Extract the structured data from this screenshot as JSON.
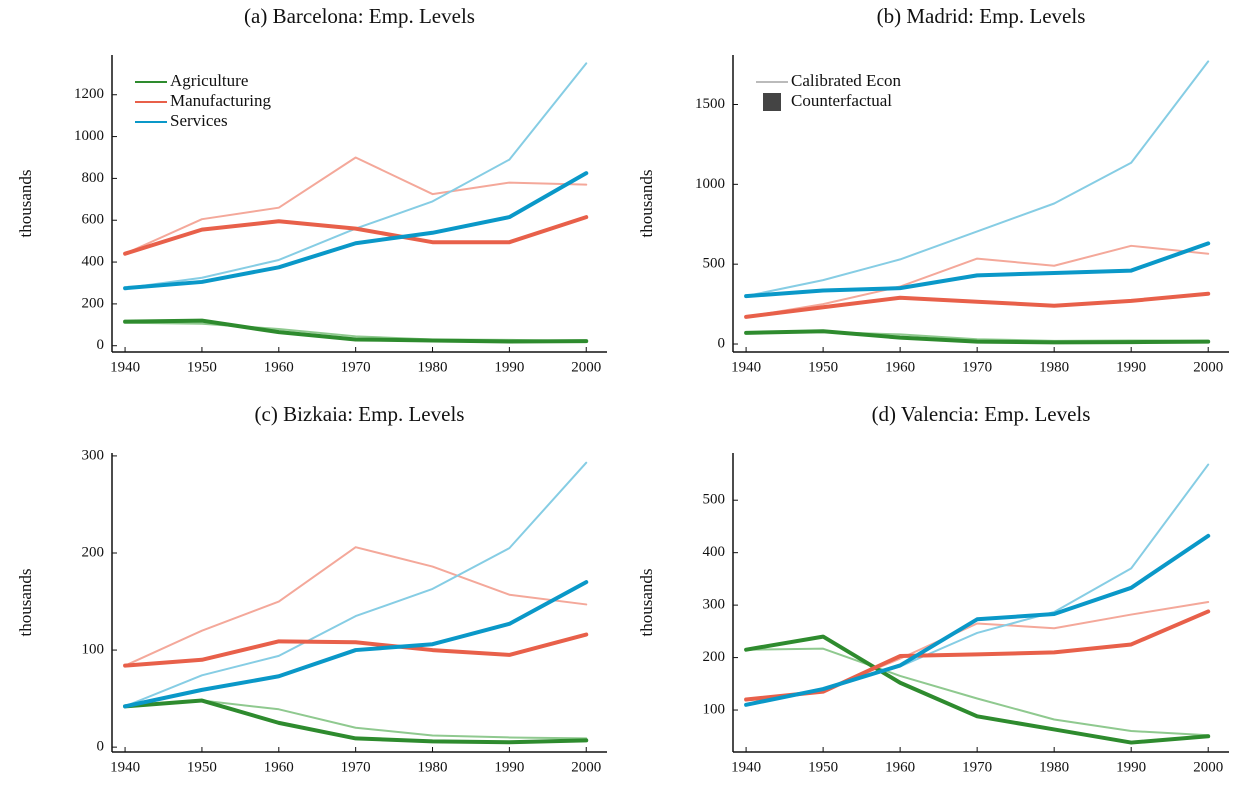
{
  "chart_data": [
    {
      "type": "line",
      "title": "(a) Barcelona: Emp. Levels",
      "y_label": "thousands",
      "x": [
        1940,
        1950,
        1960,
        1970,
        1980,
        1990,
        2000
      ],
      "xlim": [
        1938.3,
        2002.7
      ],
      "xticks": [
        1940,
        1950,
        1960,
        1970,
        1980,
        1990,
        2000
      ],
      "ylim": [
        -30,
        1390
      ],
      "yticks": [
        0,
        200,
        400,
        600,
        800,
        1000,
        1200
      ],
      "legend": [
        {
          "name": "Agriculture",
          "color": "#2e8b2e"
        },
        {
          "name": "Manufacturing",
          "color": "#e8604a"
        },
        {
          "name": "Services",
          "color": "#0a98c8"
        }
      ],
      "series": [
        {
          "color": "#8fc98f",
          "linewidth": 2,
          "values": [
            110,
            105,
            80,
            45,
            30,
            28,
            22
          ]
        },
        {
          "color": "#f4a89a",
          "linewidth": 2,
          "values": [
            440,
            605,
            660,
            900,
            725,
            780,
            770
          ]
        },
        {
          "color": "#86cde4",
          "linewidth": 2,
          "values": [
            275,
            325,
            410,
            560,
            690,
            890,
            1350
          ]
        },
        {
          "color": "#2e8b2e",
          "linewidth": 4,
          "values": [
            115,
            120,
            65,
            30,
            25,
            20,
            22
          ]
        },
        {
          "color": "#e8604a",
          "linewidth": 4,
          "values": [
            440,
            555,
            595,
            560,
            495,
            495,
            615
          ]
        },
        {
          "color": "#0a98c8",
          "linewidth": 4,
          "values": [
            275,
            305,
            375,
            490,
            540,
            615,
            825
          ]
        }
      ]
    },
    {
      "type": "line",
      "title": "(b) Madrid: Emp. Levels",
      "y_label": "thousands",
      "x": [
        1940,
        1950,
        1960,
        1970,
        1980,
        1990,
        2000
      ],
      "xlim": [
        1938.3,
        2002.7
      ],
      "xticks": [
        1940,
        1950,
        1960,
        1970,
        1980,
        1990,
        2000
      ],
      "ylim": [
        -50,
        1810
      ],
      "yticks": [
        0,
        500,
        1000,
        1500
      ],
      "legend": [
        {
          "name": "Calibrated Econ",
          "color": "#bbbbbb"
        },
        {
          "name": "Counterfactual",
          "color": "#444444"
        }
      ],
      "series": [
        {
          "color": "#8fc98f",
          "linewidth": 2,
          "values": [
            70,
            75,
            60,
            30,
            20,
            22,
            20
          ]
        },
        {
          "color": "#f4a89a",
          "linewidth": 2,
          "values": [
            170,
            250,
            360,
            535,
            490,
            615,
            565
          ]
        },
        {
          "color": "#86cde4",
          "linewidth": 2,
          "values": [
            300,
            400,
            530,
            705,
            880,
            1135,
            1770
          ]
        },
        {
          "color": "#2e8b2e",
          "linewidth": 4,
          "values": [
            70,
            80,
            40,
            15,
            10,
            12,
            15
          ]
        },
        {
          "color": "#e8604a",
          "linewidth": 4,
          "values": [
            170,
            230,
            290,
            265,
            240,
            270,
            315
          ]
        },
        {
          "color": "#0a98c8",
          "linewidth": 4,
          "values": [
            300,
            335,
            350,
            430,
            445,
            460,
            630
          ]
        }
      ]
    },
    {
      "type": "line",
      "title": "(c) Bizkaia: Emp. Levels",
      "y_label": "thousands",
      "x": [
        1940,
        1950,
        1960,
        1970,
        1980,
        1990,
        2000
      ],
      "xlim": [
        1938.3,
        2002.7
      ],
      "xticks": [
        1940,
        1950,
        1960,
        1970,
        1980,
        1990,
        2000
      ],
      "ylim": [
        -5,
        303
      ],
      "yticks": [
        0,
        100,
        200,
        300
      ],
      "series": [
        {
          "color": "#8fc98f",
          "linewidth": 2,
          "values": [
            42,
            48,
            39,
            20,
            12,
            10,
            9
          ]
        },
        {
          "color": "#f4a89a",
          "linewidth": 2,
          "values": [
            84,
            120,
            150,
            206,
            186,
            157,
            147
          ]
        },
        {
          "color": "#86cde4",
          "linewidth": 2,
          "values": [
            42,
            74,
            94,
            135,
            163,
            205,
            293
          ]
        },
        {
          "color": "#2e8b2e",
          "linewidth": 4,
          "values": [
            42,
            48,
            25,
            9,
            6,
            5,
            7
          ]
        },
        {
          "color": "#e8604a",
          "linewidth": 4,
          "values": [
            84,
            90,
            109,
            108,
            100,
            95,
            116
          ]
        },
        {
          "color": "#0a98c8",
          "linewidth": 4,
          "values": [
            42,
            59,
            73,
            100,
            106,
            127,
            170
          ]
        }
      ]
    },
    {
      "type": "line",
      "title": "(d) Valencia: Emp. Levels",
      "y_label": "thousands",
      "x": [
        1940,
        1950,
        1960,
        1970,
        1980,
        1990,
        2000
      ],
      "xlim": [
        1938.3,
        2002.7
      ],
      "xticks": [
        1940,
        1950,
        1960,
        1970,
        1980,
        1990,
        2000
      ],
      "ylim": [
        20,
        590
      ],
      "yticks": [
        100,
        200,
        300,
        400,
        500
      ],
      "series": [
        {
          "color": "#8fc98f",
          "linewidth": 2,
          "values": [
            215,
            217,
            165,
            122,
            82,
            60,
            52
          ]
        },
        {
          "color": "#f4a89a",
          "linewidth": 2,
          "values": [
            120,
            137,
            198,
            265,
            256,
            282,
            306
          ]
        },
        {
          "color": "#86cde4",
          "linewidth": 2,
          "values": [
            110,
            140,
            183,
            247,
            287,
            370,
            568
          ]
        },
        {
          "color": "#2e8b2e",
          "linewidth": 4,
          "values": [
            215,
            240,
            152,
            88,
            63,
            38,
            50
          ]
        },
        {
          "color": "#e8604a",
          "linewidth": 4,
          "values": [
            120,
            135,
            203,
            206,
            210,
            225,
            288
          ]
        },
        {
          "color": "#0a98c8",
          "linewidth": 4,
          "values": [
            110,
            140,
            185,
            273,
            283,
            333,
            432
          ]
        }
      ]
    }
  ]
}
